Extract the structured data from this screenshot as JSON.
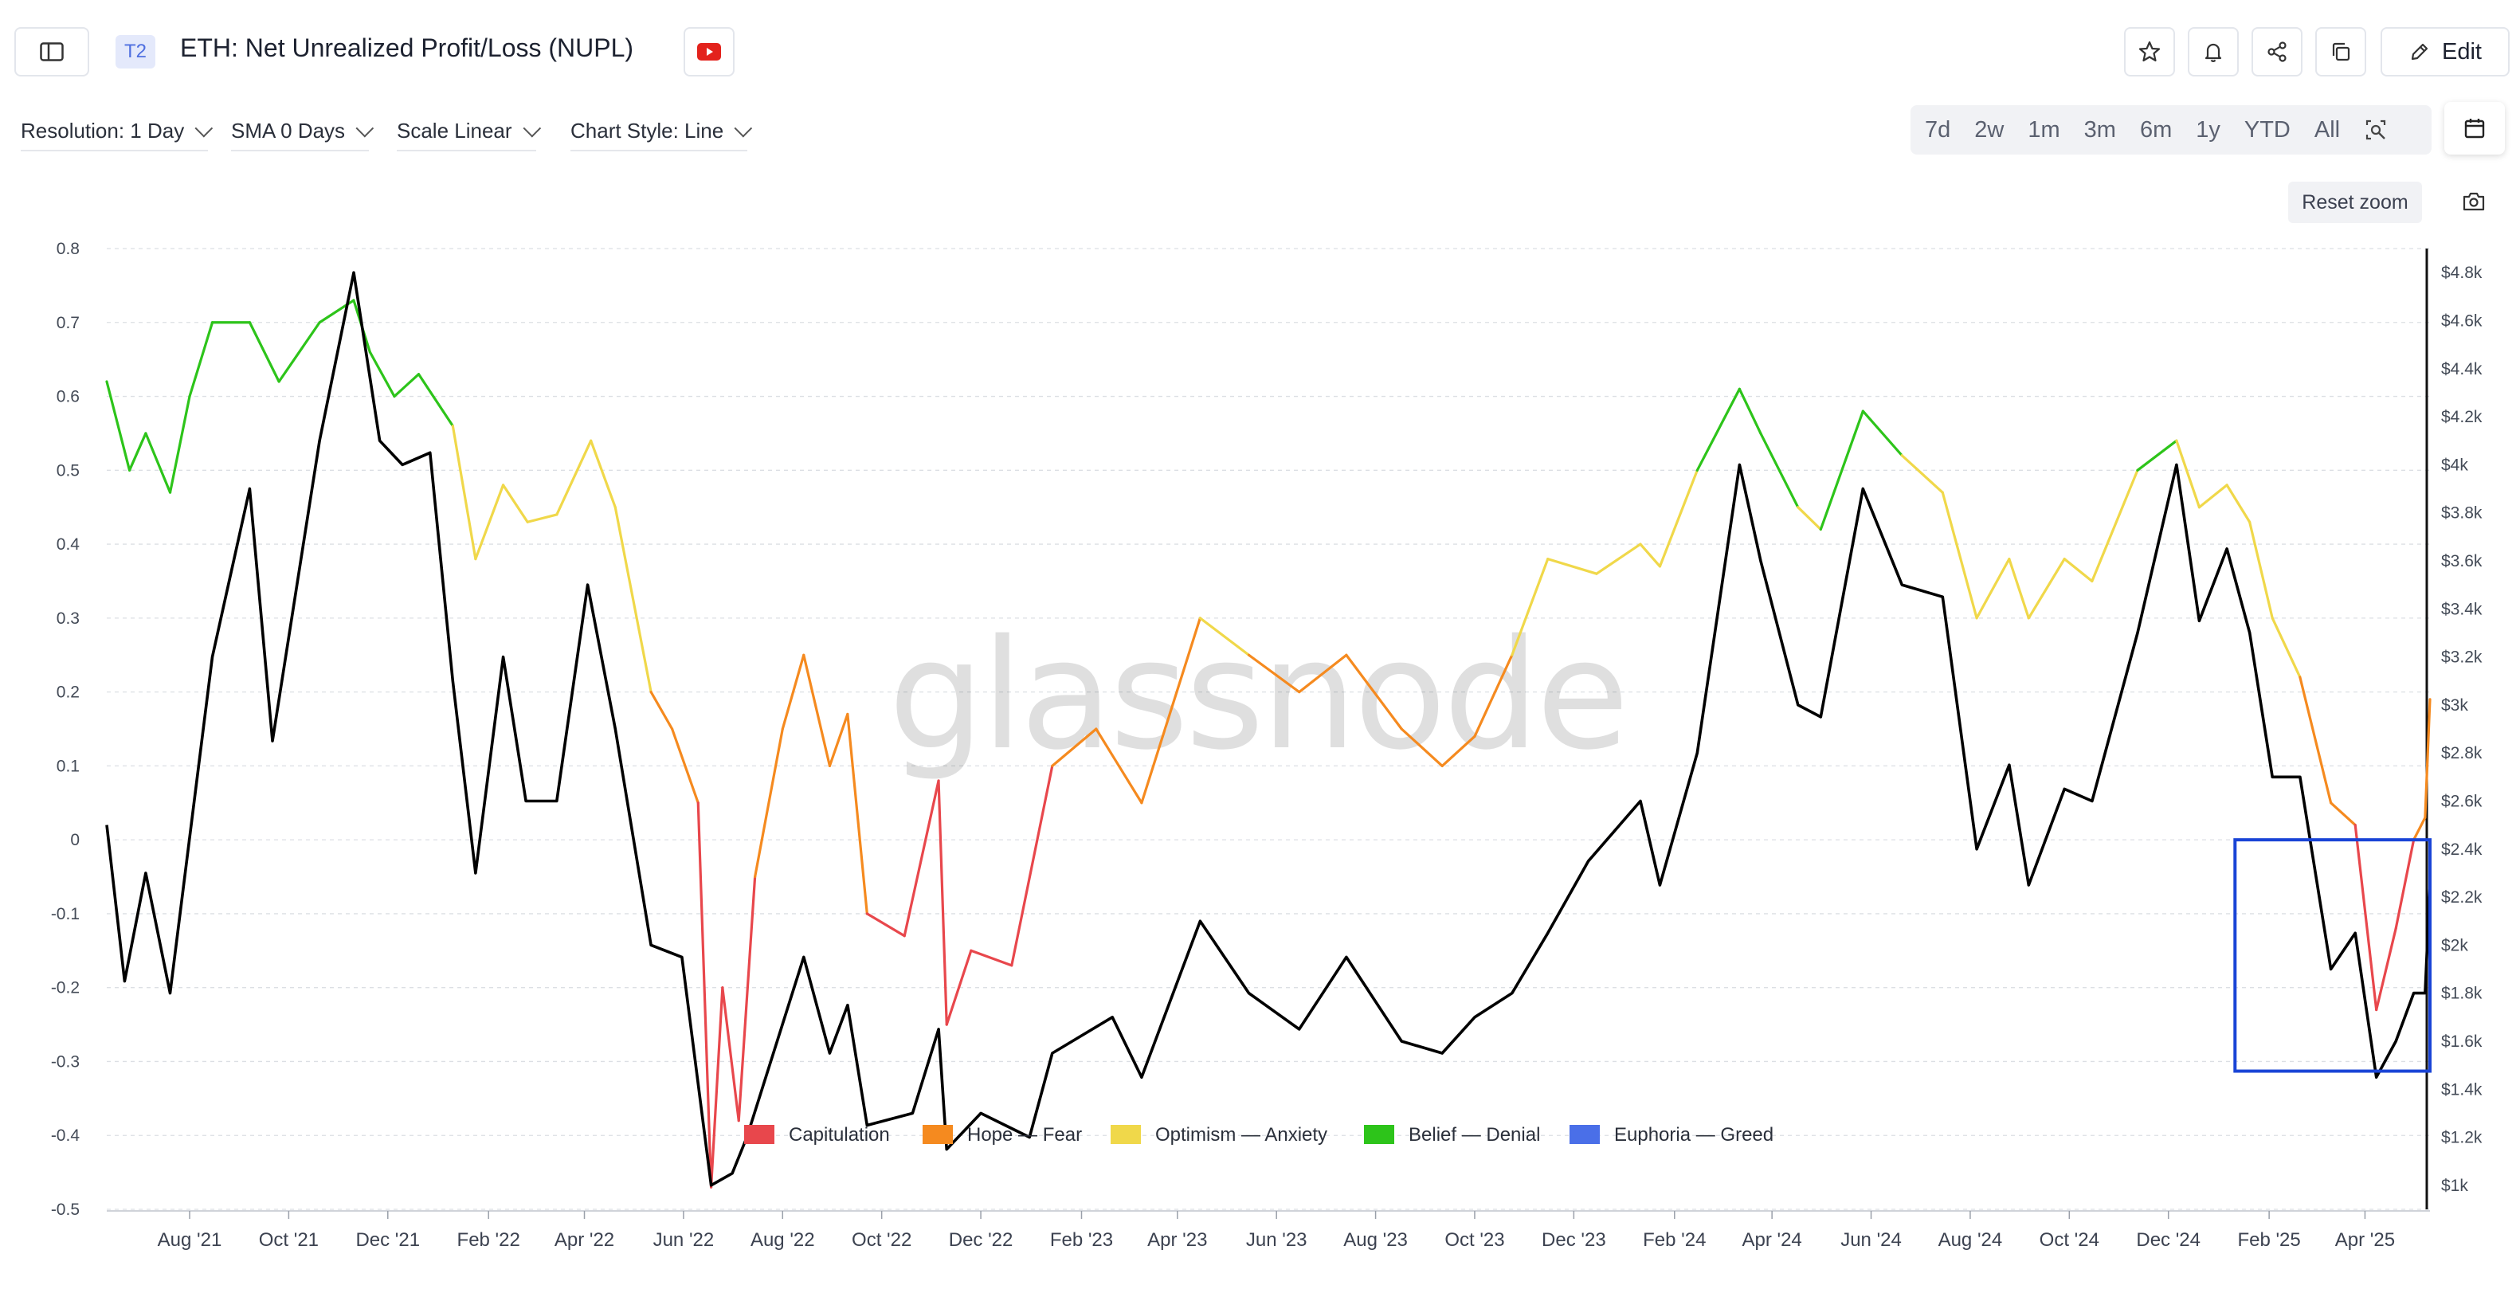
{
  "header": {
    "badge": "T2",
    "title": "ETH: Net Unrealized Profit/Loss (NUPL)",
    "edit_label": "Edit"
  },
  "controls": {
    "resolution": "Resolution: 1 Day",
    "sma": "SMA 0 Days",
    "scale": "Scale Linear",
    "style": "Chart Style: Line"
  },
  "ranges": [
    "7d",
    "2w",
    "1m",
    "3m",
    "6m",
    "1y",
    "YTD",
    "All"
  ],
  "reset_zoom": "Reset zoom",
  "watermark": "glassnode",
  "colors": {
    "capitulation": "#e8474c",
    "hope_fear": "#f58a1f",
    "optimism_anxiety": "#f0d84a",
    "belief_denial": "#2dc41a",
    "euphoria_greed": "#4a6fe8",
    "price": "#000000",
    "highlight_box": "#1a44d6",
    "youtube": "#e3221c"
  },
  "chart_data": {
    "type": "line",
    "title": "ETH: Net Unrealized Profit/Loss (NUPL)",
    "x_tick_labels": [
      "Aug '21",
      "Oct '21",
      "Dec '21",
      "Feb '22",
      "Apr '22",
      "Jun '22",
      "Aug '22",
      "Oct '22",
      "Dec '22",
      "Feb '23",
      "Apr '23",
      "Jun '23",
      "Aug '23",
      "Oct '23",
      "Dec '23",
      "Feb '24",
      "Apr '24",
      "Jun '24",
      "Aug '24",
      "Oct '24",
      "Dec '24",
      "Feb '25",
      "Apr '25"
    ],
    "x_range": [
      "2021-06-11",
      "2025-05-11"
    ],
    "left_axis": {
      "ticks": [
        0.8,
        0.7,
        0.6,
        0.5,
        0.4,
        0.3,
        0.2,
        0.1,
        0,
        -0.1,
        -0.2,
        -0.3,
        -0.4,
        -0.5
      ],
      "ylim": [
        -0.5,
        0.8
      ]
    },
    "right_axis": {
      "ticks": [
        "$4.8k",
        "$4.6k",
        "$4.4k",
        "$4.2k",
        "$4k",
        "$3.8k",
        "$3.6k",
        "$3.4k",
        "$3.2k",
        "$3k",
        "$2.8k",
        "$2.6k",
        "$2.4k",
        "$2.2k",
        "$2k",
        "$1.8k",
        "$1.6k",
        "$1.4k",
        "$1.2k",
        "$1k"
      ],
      "ylim": [
        900,
        4900
      ]
    },
    "legend": [
      "Capitulation",
      "Hope — Fear",
      "Optimism — Anxiety",
      "Belief — Denial",
      "Euphoria — Greed"
    ],
    "series": [
      {
        "name": "NUPL",
        "axis": "left",
        "points": [
          [
            "2021-06-11",
            0.62
          ],
          [
            "2021-06-25",
            0.5
          ],
          [
            "2021-07-05",
            0.55
          ],
          [
            "2021-07-20",
            0.47
          ],
          [
            "2021-08-01",
            0.6
          ],
          [
            "2021-08-15",
            0.7
          ],
          [
            "2021-09-07",
            0.7
          ],
          [
            "2021-09-25",
            0.62
          ],
          [
            "2021-10-20",
            0.7
          ],
          [
            "2021-11-10",
            0.73
          ],
          [
            "2021-11-20",
            0.66
          ],
          [
            "2021-12-05",
            0.6
          ],
          [
            "2021-12-20",
            0.63
          ],
          [
            "2022-01-10",
            0.56
          ],
          [
            "2022-01-24",
            0.38
          ],
          [
            "2022-02-10",
            0.48
          ],
          [
            "2022-02-25",
            0.43
          ],
          [
            "2022-03-15",
            0.44
          ],
          [
            "2022-04-05",
            0.54
          ],
          [
            "2022-04-20",
            0.45
          ],
          [
            "2022-05-12",
            0.2
          ],
          [
            "2022-05-25",
            0.15
          ],
          [
            "2022-06-10",
            0.05
          ],
          [
            "2022-06-18",
            -0.47
          ],
          [
            "2022-06-25",
            -0.2
          ],
          [
            "2022-07-05",
            -0.38
          ],
          [
            "2022-07-15",
            -0.05
          ],
          [
            "2022-08-01",
            0.15
          ],
          [
            "2022-08-14",
            0.25
          ],
          [
            "2022-08-30",
            0.1
          ],
          [
            "2022-09-10",
            0.17
          ],
          [
            "2022-09-22",
            -0.1
          ],
          [
            "2022-10-15",
            -0.13
          ],
          [
            "2022-11-05",
            0.08
          ],
          [
            "2022-11-10",
            -0.25
          ],
          [
            "2022-11-25",
            -0.15
          ],
          [
            "2022-12-20",
            -0.17
          ],
          [
            "2023-01-14",
            0.1
          ],
          [
            "2023-02-10",
            0.15
          ],
          [
            "2023-03-10",
            0.05
          ],
          [
            "2023-04-15",
            0.3
          ],
          [
            "2023-05-15",
            0.25
          ],
          [
            "2023-06-15",
            0.2
          ],
          [
            "2023-07-14",
            0.25
          ],
          [
            "2023-08-17",
            0.15
          ],
          [
            "2023-09-11",
            0.1
          ],
          [
            "2023-10-01",
            0.14
          ],
          [
            "2023-10-24",
            0.25
          ],
          [
            "2023-11-15",
            0.38
          ],
          [
            "2023-12-15",
            0.36
          ],
          [
            "2024-01-11",
            0.4
          ],
          [
            "2024-01-23",
            0.37
          ],
          [
            "2024-02-15",
            0.5
          ],
          [
            "2024-03-12",
            0.61
          ],
          [
            "2024-03-25",
            0.55
          ],
          [
            "2024-04-17",
            0.45
          ],
          [
            "2024-05-01",
            0.42
          ],
          [
            "2024-05-27",
            0.58
          ],
          [
            "2024-06-20",
            0.52
          ],
          [
            "2024-07-15",
            0.47
          ],
          [
            "2024-08-05",
            0.3
          ],
          [
            "2024-08-25",
            0.38
          ],
          [
            "2024-09-06",
            0.3
          ],
          [
            "2024-09-28",
            0.38
          ],
          [
            "2024-10-15",
            0.35
          ],
          [
            "2024-11-12",
            0.5
          ],
          [
            "2024-12-06",
            0.54
          ],
          [
            "2024-12-20",
            0.45
          ],
          [
            "2025-01-06",
            0.48
          ],
          [
            "2025-01-20",
            0.43
          ],
          [
            "2025-02-03",
            0.3
          ],
          [
            "2025-02-20",
            0.22
          ],
          [
            "2025-03-11",
            0.05
          ],
          [
            "2025-03-26",
            0.02
          ],
          [
            "2025-04-08",
            -0.23
          ],
          [
            "2025-04-20",
            -0.12
          ],
          [
            "2025-05-01",
            0.0
          ],
          [
            "2025-05-08",
            0.03
          ],
          [
            "2025-05-11",
            0.19
          ]
        ]
      },
      {
        "name": "ETH Price",
        "axis": "right",
        "points": [
          [
            "2021-06-11",
            2500
          ],
          [
            "2021-06-22",
            1850
          ],
          [
            "2021-07-05",
            2300
          ],
          [
            "2021-07-20",
            1800
          ],
          [
            "2021-08-15",
            3200
          ],
          [
            "2021-09-07",
            3900
          ],
          [
            "2021-09-21",
            2850
          ],
          [
            "2021-10-20",
            4100
          ],
          [
            "2021-11-10",
            4800
          ],
          [
            "2021-11-26",
            4100
          ],
          [
            "2021-12-10",
            4000
          ],
          [
            "2021-12-27",
            4050
          ],
          [
            "2022-01-10",
            3100
          ],
          [
            "2022-01-24",
            2300
          ],
          [
            "2022-02-10",
            3200
          ],
          [
            "2022-02-24",
            2600
          ],
          [
            "2022-03-15",
            2600
          ],
          [
            "2022-04-03",
            3500
          ],
          [
            "2022-04-20",
            2900
          ],
          [
            "2022-05-12",
            2000
          ],
          [
            "2022-05-31",
            1950
          ],
          [
            "2022-06-18",
            1000
          ],
          [
            "2022-07-01",
            1050
          ],
          [
            "2022-07-10",
            1200
          ],
          [
            "2022-08-14",
            1950
          ],
          [
            "2022-08-30",
            1550
          ],
          [
            "2022-09-10",
            1750
          ],
          [
            "2022-09-22",
            1250
          ],
          [
            "2022-10-20",
            1300
          ],
          [
            "2022-11-05",
            1650
          ],
          [
            "2022-11-10",
            1150
          ],
          [
            "2022-12-01",
            1300
          ],
          [
            "2022-12-31",
            1200
          ],
          [
            "2023-01-14",
            1550
          ],
          [
            "2023-02-20",
            1700
          ],
          [
            "2023-03-10",
            1450
          ],
          [
            "2023-04-15",
            2100
          ],
          [
            "2023-05-15",
            1800
          ],
          [
            "2023-06-15",
            1650
          ],
          [
            "2023-07-14",
            1950
          ],
          [
            "2023-08-17",
            1600
          ],
          [
            "2023-09-11",
            1550
          ],
          [
            "2023-10-01",
            1700
          ],
          [
            "2023-10-24",
            1800
          ],
          [
            "2023-11-15",
            2050
          ],
          [
            "2023-12-10",
            2350
          ],
          [
            "2024-01-11",
            2600
          ],
          [
            "2024-01-23",
            2250
          ],
          [
            "2024-02-15",
            2800
          ],
          [
            "2024-03-12",
            4000
          ],
          [
            "2024-03-25",
            3600
          ],
          [
            "2024-04-17",
            3000
          ],
          [
            "2024-05-01",
            2950
          ],
          [
            "2024-05-27",
            3900
          ],
          [
            "2024-06-20",
            3500
          ],
          [
            "2024-07-15",
            3450
          ],
          [
            "2024-08-05",
            2400
          ],
          [
            "2024-08-25",
            2750
          ],
          [
            "2024-09-06",
            2250
          ],
          [
            "2024-09-28",
            2650
          ],
          [
            "2024-10-15",
            2600
          ],
          [
            "2024-11-12",
            3300
          ],
          [
            "2024-12-06",
            4000
          ],
          [
            "2024-12-20",
            3350
          ],
          [
            "2025-01-06",
            3650
          ],
          [
            "2025-01-20",
            3300
          ],
          [
            "2025-02-03",
            2700
          ],
          [
            "2025-02-20",
            2700
          ],
          [
            "2025-03-11",
            1900
          ],
          [
            "2025-03-26",
            2050
          ],
          [
            "2025-04-08",
            1450
          ],
          [
            "2025-04-20",
            1600
          ],
          [
            "2025-05-01",
            1800
          ],
          [
            "2025-05-08",
            1800
          ],
          [
            "2025-05-11",
            2250
          ]
        ]
      }
    ],
    "zone_thresholds": {
      "capitulation": [
        -1,
        0
      ],
      "hope_fear": [
        0,
        0.25
      ],
      "optimism_anxiety": [
        0.25,
        0.5
      ],
      "belief_denial": [
        0.5,
        0.75
      ],
      "euphoria_greed": [
        0.75,
        1
      ]
    },
    "grid": true,
    "legend_position": "bottom-center",
    "annotations": [
      {
        "type": "box",
        "x": [
          "2025-01-11",
          "2025-05-11"
        ],
        "left_y": [
          -0.313,
          0.0
        ],
        "color": "#1a44d6"
      }
    ]
  }
}
